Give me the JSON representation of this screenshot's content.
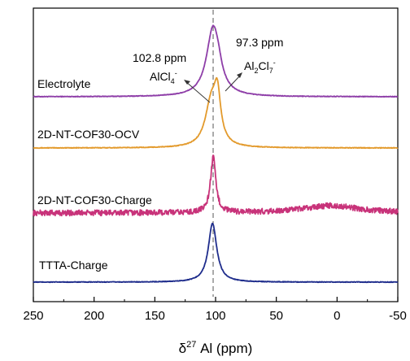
{
  "chart_data": {
    "type": "line",
    "title": "",
    "xlabel": {
      "prefix": "δ",
      "superscript": "27",
      "suffix": " Al (ppm)"
    },
    "ylabel": "",
    "xlim": [
      250,
      -50
    ],
    "x_reversed": true,
    "xticks": [
      250,
      200,
      150,
      100,
      50,
      0,
      -50
    ],
    "grid": false,
    "reference_line_x": 102,
    "series": [
      {
        "label": "Electrolyte",
        "color": "#8e3ea8",
        "peaks": [
          {
            "x": 102,
            "height": 0.85,
            "width": 6.5
          },
          {
            "x": 97.5,
            "height": 0.08,
            "width": 3
          }
        ],
        "noise": 0.004
      },
      {
        "label": "2D-NT-COF30-OCV",
        "color": "#e39a2c",
        "peaks": [
          {
            "x": 103.5,
            "height": 0.55,
            "width": 6
          },
          {
            "x": 98.5,
            "height": 0.52,
            "width": 3.2
          }
        ],
        "noise": 0.004
      },
      {
        "label": "2D-NT-COF30-Charge",
        "color": "#c8337a",
        "peaks": [
          {
            "x": 102,
            "height": 0.68,
            "width": 2.6
          },
          {
            "x": 5,
            "height": 0.09,
            "width": 28
          }
        ],
        "noise": 0.035
      },
      {
        "label": "TTTA-Charge",
        "color": "#1f2d8c",
        "peaks": [
          {
            "x": 102.5,
            "height": 0.72,
            "width": 4.2
          }
        ],
        "noise": 0.004
      }
    ],
    "annotations": [
      {
        "name": "alcl4",
        "value": "102.8 ppm",
        "species": {
          "main": "AlCl",
          "sub": "4",
          "sup": "-"
        }
      },
      {
        "name": "al2cl7",
        "value": "97.3 ppm",
        "species": {
          "main1": "Al",
          "sub1": "2",
          "main2": "Cl",
          "sub2": "7",
          "sup": "-"
        }
      }
    ]
  }
}
